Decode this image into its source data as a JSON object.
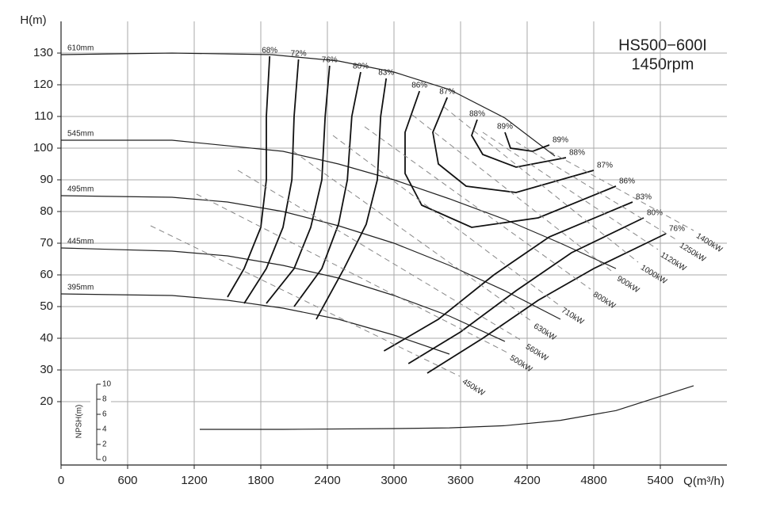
{
  "chart_data": {
    "type": "line",
    "title": "HS500−600I",
    "subtitle": "1450rpm",
    "x_label": "Q(m³/h)",
    "y_label": "H(m)",
    "y2_label": "NPSH(m)",
    "xlim": [
      0,
      6000
    ],
    "xticks": [
      0,
      600,
      1200,
      1800,
      2400,
      3000,
      3600,
      4200,
      4800,
      5400
    ],
    "ylim": [
      0,
      140
    ],
    "yticks": [
      20,
      30,
      40,
      50,
      60,
      70,
      80,
      90,
      100,
      110,
      120,
      130
    ],
    "y2lim": [
      0,
      10
    ],
    "y2ticks": [
      0,
      2,
      4,
      6,
      8,
      10
    ],
    "grid": true,
    "series": [
      {
        "name": "610mm",
        "color": "#222",
        "x": [
          0,
          1000,
          1900,
          2500,
          3000,
          3500,
          4000,
          4450
        ],
        "values": [
          129.5,
          130,
          129.5,
          127.5,
          124,
          118.5,
          109.5,
          97.5
        ]
      },
      {
        "name": "545mm",
        "color": "#222",
        "x": [
          0,
          1000,
          2000,
          2500,
          3000,
          3500,
          4000,
          4500,
          5000
        ],
        "values": [
          102.5,
          102.5,
          99,
          95,
          90,
          84,
          77.5,
          70,
          62
        ]
      },
      {
        "name": "495mm",
        "color": "#222",
        "x": [
          0,
          1000,
          1500,
          2000,
          2500,
          3000,
          3500,
          4000,
          4500
        ],
        "values": [
          85,
          84.5,
          83,
          80,
          75.5,
          70,
          63,
          55,
          46
        ]
      },
      {
        "name": "445mm",
        "color": "#222",
        "x": [
          0,
          1000,
          1500,
          2000,
          2500,
          3000,
          3500,
          4000
        ],
        "values": [
          68.5,
          67.5,
          66,
          63,
          59,
          53.5,
          47,
          39
        ]
      },
      {
        "name": "395mm",
        "color": "#222",
        "x": [
          0,
          1000,
          1500,
          2000,
          2500,
          3000,
          3500
        ],
        "values": [
          54,
          53.5,
          52,
          49.5,
          46,
          41,
          35
        ]
      },
      {
        "name": "68%",
        "color": "#111",
        "x": [
          1880,
          1850,
          1850,
          1800,
          1650,
          1500
        ],
        "values": [
          129,
          110,
          90,
          75,
          62,
          53
        ]
      },
      {
        "name": "72%",
        "color": "#111",
        "x": [
          2140,
          2100,
          2080,
          2000,
          1850,
          1650
        ],
        "values": [
          128,
          110,
          90,
          75,
          62,
          51
        ]
      },
      {
        "name": "76%",
        "color": "#111",
        "x": [
          2420,
          2380,
          2350,
          2250,
          2100,
          1850,
          null,
          3300,
          3800,
          4300,
          4800,
          5450
        ],
        "values": [
          126,
          110,
          90,
          75,
          62,
          51,
          null,
          29,
          40,
          52,
          62,
          73
        ]
      },
      {
        "name": "80%",
        "color": "#111",
        "x": [
          2700,
          2620,
          2580,
          2500,
          2350,
          2100,
          null,
          3130,
          3600,
          4100,
          4600,
          5250
        ],
        "values": [
          124,
          110,
          90,
          76,
          62,
          50,
          null,
          32,
          42,
          55,
          67,
          78
        ]
      },
      {
        "name": "83%",
        "color": "#111",
        "x": [
          2930,
          2880,
          2850,
          2750,
          2550,
          2300,
          null,
          2910,
          3400,
          3900,
          4400,
          5150
        ],
        "values": [
          122,
          110,
          90,
          76,
          62,
          46,
          null,
          36,
          46,
          60,
          72,
          83
        ]
      },
      {
        "name": "86%",
        "color": "#111",
        "x": [
          3230,
          3100,
          3100,
          3250,
          3700,
          4300,
          5000
        ],
        "values": [
          118,
          105,
          92,
          82,
          75,
          78,
          88
        ]
      },
      {
        "name": "87%",
        "color": "#111",
        "x": [
          3480,
          3350,
          3400,
          3650,
          4100,
          4800
        ],
        "values": [
          116,
          105,
          95,
          88,
          86,
          93
        ]
      },
      {
        "name": "88%",
        "color": "#111",
        "x": [
          3750,
          3700,
          3800,
          4100,
          4550
        ],
        "values": [
          109,
          104,
          98,
          94,
          97
        ]
      },
      {
        "name": "89%",
        "color": "#111",
        "x": [
          4000,
          4050,
          4250,
          4400
        ],
        "values": [
          105,
          100,
          99,
          101
        ]
      },
      {
        "name": "450kW",
        "color": "#888",
        "line_style": "dashed",
        "x": [
          807,
          3593
        ],
        "values": [
          75.5,
          28
        ]
      },
      {
        "name": "500kW",
        "color": "#888",
        "line_style": "dashed",
        "x": [
          1221,
          4021
        ],
        "values": [
          85.5,
          35.5
        ]
      },
      {
        "name": "560kW",
        "color": "#888",
        "line_style": "dashed",
        "x": [
          1593,
          4164
        ],
        "values": [
          93,
          39
        ]
      },
      {
        "name": "630kW",
        "color": "#888",
        "line_style": "dashed",
        "x": [
          2093,
          4236
        ],
        "values": [
          99,
          45.5
        ]
      },
      {
        "name": "710kW",
        "color": "#888",
        "line_style": "dashed",
        "x": [
          2450,
          4486
        ],
        "values": [
          104,
          50.5
        ]
      },
      {
        "name": "800kW",
        "color": "#888",
        "line_style": "dashed",
        "x": [
          2736,
          4771
        ],
        "values": [
          106.75,
          55.5
        ]
      },
      {
        "name": "900kW",
        "color": "#888",
        "line_style": "dashed",
        "x": [
          3164,
          4986
        ],
        "values": [
          110.5,
          60.5
        ]
      },
      {
        "name": "1000kW",
        "color": "#888",
        "line_style": "dashed",
        "x": [
          3450,
          5200
        ],
        "values": [
          113,
          64
        ]
      },
      {
        "name": "1120kW",
        "color": "#888",
        "line_style": "dashed",
        "x": [
          3800,
          5379
        ],
        "values": [
          105,
          68
        ]
      },
      {
        "name": "1250kW",
        "color": "#888",
        "line_style": "dashed",
        "x": [
          4100,
          5550
        ],
        "values": [
          102,
          71
        ]
      },
      {
        "name": "1400kW",
        "color": "#888",
        "line_style": "dashed",
        "x": [
          4400,
          5700
        ],
        "values": [
          99,
          74
        ]
      },
      {
        "name": "NPSH",
        "color": "#222",
        "axis": "y2",
        "x": [
          1250,
          2000,
          3000,
          3500,
          4000,
          4500,
          5000,
          5700
        ],
        "values": [
          4.0,
          4.0,
          4.1,
          4.2,
          4.5,
          5.2,
          6.5,
          9.8
        ]
      }
    ]
  }
}
